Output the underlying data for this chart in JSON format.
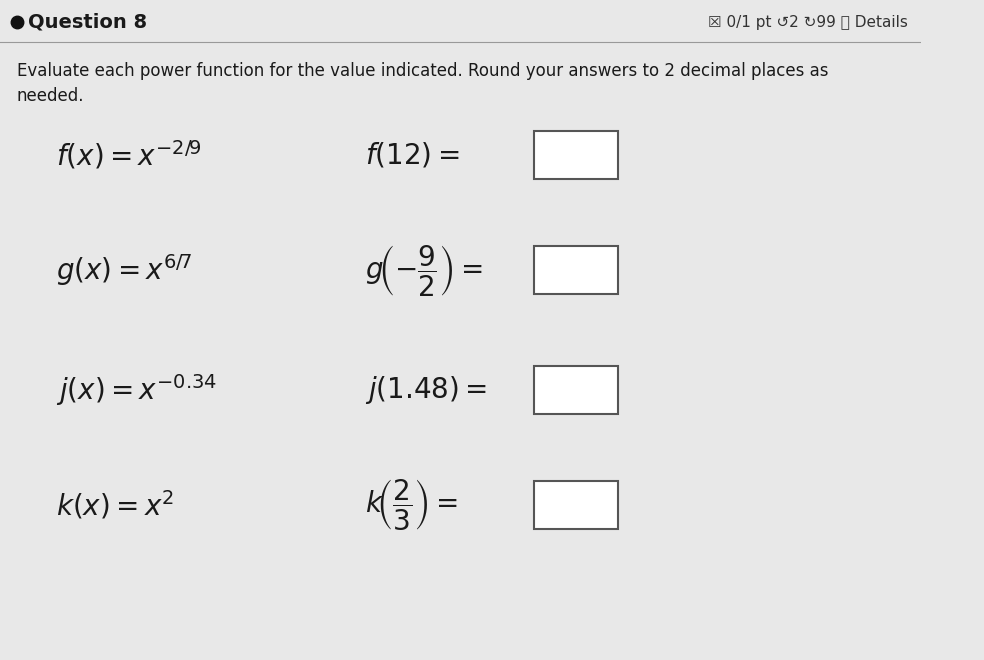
{
  "bg_color": "#e8e8e8",
  "header_bg": "#e8e8e8",
  "title": "Question 8",
  "title_dot_color": "#1a1a1a",
  "header_right": "☒ 0/1 pt ↺2 ↻99 ⓘ Details",
  "instruction": "Evaluate each power function for the value indicated. Round your answers to 2 decimal places as\nneeded.",
  "rows": [
    {
      "left_latex": "$f(x) = x^{-2/9}$",
      "right_latex": "$f(12) =$"
    },
    {
      "left_latex": "$g(x) = x^{6/7}$",
      "right_latex": "$g\\!\\left(-\\dfrac{9}{2}\\right) =$"
    },
    {
      "left_latex": "$j(x) = x^{-0.34}$",
      "right_latex": "$j(1.48) =$"
    },
    {
      "left_latex": "$k(x) = x^{2}$",
      "right_latex": "$k\\!\\left(\\dfrac{2}{3}\\right) =$"
    }
  ],
  "box_color": "#ffffff",
  "box_edge_color": "#555555",
  "text_color": "#1a1a1a",
  "divider_color": "#999999"
}
